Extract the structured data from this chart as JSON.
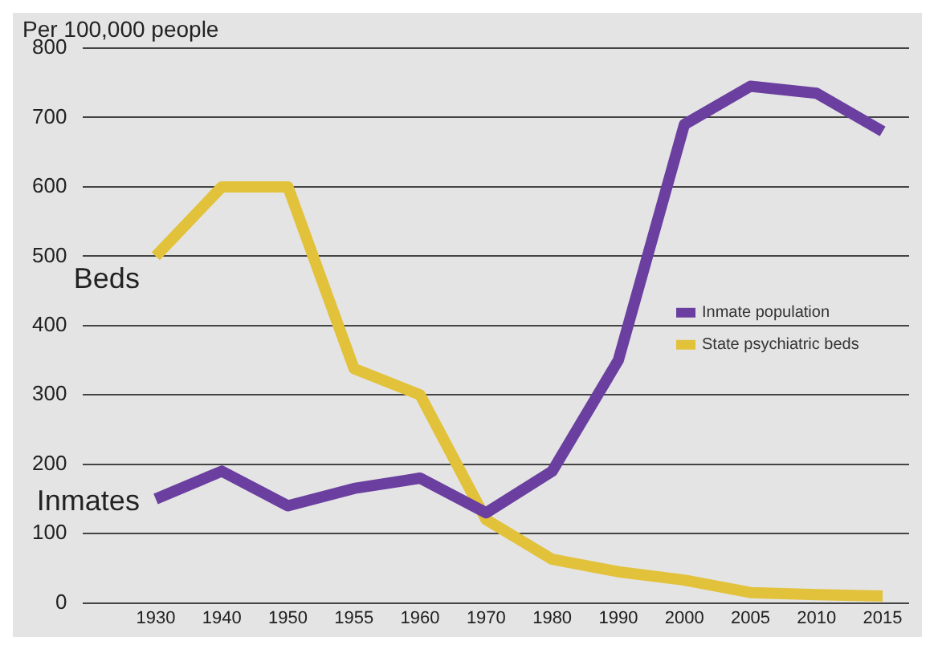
{
  "chart_data": {
    "type": "line",
    "ylabel": "Per 100,000 people",
    "categories": [
      "1930",
      "1940",
      "1950",
      "1955",
      "1960",
      "1970",
      "1980",
      "1990",
      "2000",
      "2005",
      "2010",
      "2015"
    ],
    "series": [
      {
        "name": "Inmate population",
        "color": "#6b3fa0",
        "values": [
          150,
          190,
          140,
          165,
          180,
          130,
          190,
          350,
          690,
          745,
          735,
          680
        ]
      },
      {
        "name": "State psychiatric beds",
        "color": "#e2c23a",
        "values": [
          500,
          600,
          600,
          338,
          300,
          120,
          63,
          45,
          33,
          15,
          12,
          10
        ]
      }
    ],
    "ylim": [
      0,
      800
    ],
    "yticks": [
      0,
      100,
      200,
      300,
      400,
      500,
      600,
      700,
      800
    ],
    "grid": "y",
    "legend": "right",
    "marker": "none",
    "line_style": "solid",
    "annotations": [
      {
        "text": "Beds",
        "x": "1930",
        "y": 500
      },
      {
        "text": "Inmates",
        "x": "1930",
        "y": 150
      }
    ]
  }
}
